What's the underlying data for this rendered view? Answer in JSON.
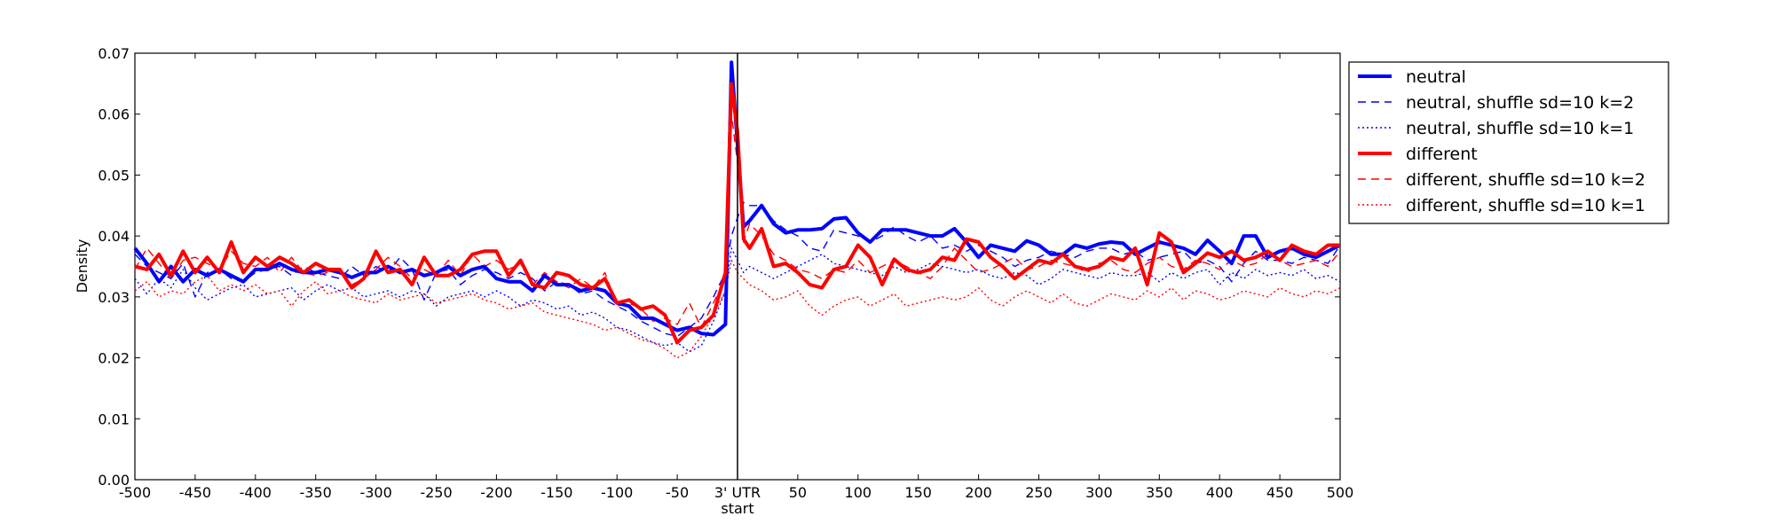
{
  "chart_data": {
    "type": "line",
    "title": "",
    "xlabel": "start",
    "ylabel": "Density",
    "xlim": [
      -500,
      500
    ],
    "ylim": [
      0,
      0.07
    ],
    "grid": false,
    "legend_position": "outside-top-right",
    "xticks": [
      {
        "value": -500,
        "label": "-500"
      },
      {
        "value": -450,
        "label": "-450"
      },
      {
        "value": -400,
        "label": "-400"
      },
      {
        "value": -350,
        "label": "-350"
      },
      {
        "value": -300,
        "label": "-300"
      },
      {
        "value": -250,
        "label": "-250"
      },
      {
        "value": -200,
        "label": "-200"
      },
      {
        "value": -150,
        "label": "-150"
      },
      {
        "value": -100,
        "label": "-100"
      },
      {
        "value": -50,
        "label": "-50"
      },
      {
        "value": 0,
        "label": "3' UTR"
      },
      {
        "value": 50,
        "label": "50"
      },
      {
        "value": 100,
        "label": "100"
      },
      {
        "value": 150,
        "label": "150"
      },
      {
        "value": 200,
        "label": "200"
      },
      {
        "value": 250,
        "label": "250"
      },
      {
        "value": 300,
        "label": "300"
      },
      {
        "value": 350,
        "label": "350"
      },
      {
        "value": 400,
        "label": "400"
      },
      {
        "value": 450,
        "label": "450"
      },
      {
        "value": 500,
        "label": "500"
      }
    ],
    "yticks": [
      {
        "value": 0,
        "label": "0.00"
      },
      {
        "value": 0.01,
        "label": "0.01"
      },
      {
        "value": 0.02,
        "label": "0.02"
      },
      {
        "value": 0.03,
        "label": "0.03"
      },
      {
        "value": 0.04,
        "label": "0.04"
      },
      {
        "value": 0.05,
        "label": "0.05"
      },
      {
        "value": 0.06,
        "label": "0.06"
      },
      {
        "value": 0.07,
        "label": "0.07"
      }
    ],
    "vline_x": 0,
    "x": [
      -500,
      -490,
      -480,
      -470,
      -460,
      -450,
      -440,
      -430,
      -420,
      -410,
      -400,
      -390,
      -380,
      -370,
      -360,
      -350,
      -340,
      -330,
      -320,
      -310,
      -300,
      -290,
      -280,
      -270,
      -260,
      -250,
      -240,
      -230,
      -220,
      -210,
      -200,
      -190,
      -180,
      -170,
      -160,
      -150,
      -140,
      -130,
      -120,
      -110,
      -100,
      -90,
      -80,
      -70,
      -60,
      -50,
      -40,
      -30,
      -20,
      -10,
      -5,
      0,
      5,
      10,
      20,
      30,
      40,
      50,
      60,
      70,
      80,
      90,
      100,
      110,
      120,
      130,
      140,
      150,
      160,
      170,
      180,
      190,
      200,
      210,
      220,
      230,
      240,
      250,
      260,
      270,
      280,
      290,
      300,
      310,
      320,
      330,
      340,
      350,
      360,
      370,
      380,
      390,
      400,
      410,
      420,
      430,
      440,
      450,
      460,
      470,
      480,
      490,
      500
    ],
    "series": [
      {
        "name": "neutral",
        "color": "#0000ff",
        "style": "solid",
        "width": "thick",
        "values": [
          0.038,
          0.0355,
          0.0325,
          0.035,
          0.0325,
          0.0345,
          0.0335,
          0.0345,
          0.0335,
          0.0325,
          0.0345,
          0.0345,
          0.0355,
          0.0345,
          0.034,
          0.034,
          0.0345,
          0.034,
          0.0332,
          0.034,
          0.034,
          0.035,
          0.034,
          0.0345,
          0.0335,
          0.034,
          0.035,
          0.0335,
          0.0345,
          0.035,
          0.033,
          0.0325,
          0.0325,
          0.031,
          0.0335,
          0.032,
          0.032,
          0.031,
          0.0315,
          0.031,
          0.029,
          0.0285,
          0.0265,
          0.0265,
          0.0255,
          0.0245,
          0.025,
          0.024,
          0.0238,
          0.0255,
          0.0685,
          0.055,
          0.0415,
          0.0425,
          0.045,
          0.042,
          0.0405,
          0.041,
          0.041,
          0.0412,
          0.0428,
          0.043,
          0.0405,
          0.039,
          0.041,
          0.041,
          0.041,
          0.0405,
          0.04,
          0.04,
          0.0412,
          0.039,
          0.0365,
          0.0385,
          0.038,
          0.0375,
          0.0392,
          0.0385,
          0.037,
          0.037,
          0.0385,
          0.038,
          0.0387,
          0.039,
          0.0388,
          0.037,
          0.038,
          0.039,
          0.0385,
          0.038,
          0.037,
          0.0393,
          0.0375,
          0.0355,
          0.04,
          0.04,
          0.0365,
          0.0375,
          0.038,
          0.037,
          0.0365,
          0.0375,
          0.0385
        ]
      },
      {
        "name": "neutral, shuffle sd=10 k=2",
        "color": "#0000ff",
        "style": "dashed",
        "width": "thin",
        "values": [
          0.037,
          0.035,
          0.034,
          0.033,
          0.0355,
          0.03,
          0.034,
          0.0345,
          0.033,
          0.0325,
          0.034,
          0.0345,
          0.035,
          0.0335,
          0.035,
          0.034,
          0.0335,
          0.033,
          0.035,
          0.0335,
          0.035,
          0.034,
          0.0365,
          0.0345,
          0.0295,
          0.034,
          0.0345,
          0.032,
          0.0335,
          0.0345,
          0.034,
          0.033,
          0.034,
          0.033,
          0.031,
          0.0325,
          0.032,
          0.0305,
          0.031,
          0.0295,
          0.0285,
          0.0275,
          0.026,
          0.025,
          0.024,
          0.0235,
          0.025,
          0.0265,
          0.03,
          0.034,
          0.04,
          0.043,
          0.0455,
          0.045,
          0.045,
          0.0425,
          0.041,
          0.04,
          0.038,
          0.0375,
          0.041,
          0.0405,
          0.04,
          0.039,
          0.04,
          0.0415,
          0.04,
          0.039,
          0.04,
          0.038,
          0.0385,
          0.0375,
          0.0385,
          0.0375,
          0.0365,
          0.035,
          0.036,
          0.0365,
          0.0375,
          0.037,
          0.0365,
          0.0375,
          0.038,
          0.038,
          0.037,
          0.0375,
          0.036,
          0.0365,
          0.037,
          0.0375,
          0.0355,
          0.036,
          0.035,
          0.0325,
          0.0355,
          0.0375,
          0.036,
          0.036,
          0.0355,
          0.0365,
          0.036,
          0.0355,
          0.0385
        ]
      },
      {
        "name": "neutral, shuffle sd=10 k=1",
        "color": "#0000ff",
        "style": "dotted",
        "width": "thin",
        "values": [
          0.033,
          0.0305,
          0.033,
          0.0315,
          0.0345,
          0.0315,
          0.0295,
          0.0305,
          0.0315,
          0.032,
          0.03,
          0.0305,
          0.031,
          0.0315,
          0.0295,
          0.031,
          0.032,
          0.031,
          0.0315,
          0.03,
          0.0305,
          0.031,
          0.03,
          0.031,
          0.0305,
          0.0285,
          0.03,
          0.0305,
          0.031,
          0.03,
          0.031,
          0.03,
          0.0285,
          0.0295,
          0.029,
          0.028,
          0.0285,
          0.027,
          0.0275,
          0.0265,
          0.025,
          0.0245,
          0.0235,
          0.0225,
          0.022,
          0.0225,
          0.021,
          0.022,
          0.026,
          0.031,
          0.038,
          0.036,
          0.034,
          0.035,
          0.034,
          0.033,
          0.034,
          0.035,
          0.036,
          0.037,
          0.0355,
          0.035,
          0.0345,
          0.034,
          0.0335,
          0.035,
          0.034,
          0.0345,
          0.0355,
          0.035,
          0.0345,
          0.034,
          0.0345,
          0.0335,
          0.033,
          0.034,
          0.0335,
          0.032,
          0.033,
          0.0345,
          0.034,
          0.0335,
          0.033,
          0.034,
          0.0335,
          0.0335,
          0.034,
          0.0325,
          0.034,
          0.033,
          0.034,
          0.0345,
          0.032,
          0.034,
          0.033,
          0.0345,
          0.0335,
          0.034,
          0.0335,
          0.0345,
          0.033,
          0.0335,
          0.0325
        ]
      },
      {
        "name": "different",
        "color": "#ff0000",
        "style": "solid",
        "width": "thick",
        "values": [
          0.035,
          0.0345,
          0.037,
          0.0335,
          0.0375,
          0.034,
          0.0365,
          0.034,
          0.039,
          0.034,
          0.0365,
          0.035,
          0.0365,
          0.0355,
          0.034,
          0.0355,
          0.0345,
          0.0345,
          0.0315,
          0.033,
          0.0375,
          0.034,
          0.0345,
          0.032,
          0.0365,
          0.0335,
          0.0335,
          0.0345,
          0.037,
          0.0375,
          0.0375,
          0.0335,
          0.036,
          0.032,
          0.0315,
          0.034,
          0.0335,
          0.032,
          0.0315,
          0.033,
          0.029,
          0.0295,
          0.028,
          0.0285,
          0.027,
          0.0225,
          0.0245,
          0.025,
          0.027,
          0.034,
          0.065,
          0.057,
          0.0395,
          0.038,
          0.0412,
          0.035,
          0.0355,
          0.034,
          0.032,
          0.0315,
          0.0345,
          0.035,
          0.0385,
          0.0365,
          0.032,
          0.0362,
          0.0345,
          0.034,
          0.0345,
          0.0365,
          0.036,
          0.0395,
          0.039,
          0.0365,
          0.035,
          0.033,
          0.0345,
          0.036,
          0.0355,
          0.037,
          0.035,
          0.0345,
          0.035,
          0.0365,
          0.036,
          0.038,
          0.032,
          0.0405,
          0.039,
          0.034,
          0.0355,
          0.0372,
          0.0365,
          0.0375,
          0.036,
          0.0365,
          0.0375,
          0.036,
          0.0385,
          0.0375,
          0.037,
          0.0385,
          0.0385
        ]
      },
      {
        "name": "different, shuffle sd=10 k=2",
        "color": "#ff0000",
        "style": "dashed",
        "width": "thin",
        "values": [
          0.0345,
          0.038,
          0.0355,
          0.033,
          0.036,
          0.0365,
          0.0355,
          0.0345,
          0.0375,
          0.0355,
          0.035,
          0.0365,
          0.034,
          0.0365,
          0.034,
          0.0335,
          0.034,
          0.0345,
          0.032,
          0.033,
          0.0345,
          0.0365,
          0.035,
          0.033,
          0.0345,
          0.0335,
          0.036,
          0.0335,
          0.037,
          0.035,
          0.036,
          0.0345,
          0.0355,
          0.032,
          0.034,
          0.0325,
          0.0315,
          0.033,
          0.0315,
          0.034,
          0.0285,
          0.029,
          0.028,
          0.026,
          0.0265,
          0.0255,
          0.029,
          0.025,
          0.029,
          0.033,
          0.06,
          0.052,
          0.039,
          0.042,
          0.04,
          0.037,
          0.036,
          0.0345,
          0.034,
          0.033,
          0.0345,
          0.034,
          0.036,
          0.034,
          0.035,
          0.036,
          0.035,
          0.034,
          0.033,
          0.035,
          0.038,
          0.036,
          0.034,
          0.0345,
          0.0355,
          0.0365,
          0.0345,
          0.035,
          0.036,
          0.0355,
          0.035,
          0.034,
          0.0355,
          0.036,
          0.0345,
          0.034,
          0.0355,
          0.0365,
          0.035,
          0.0345,
          0.036,
          0.0355,
          0.0345,
          0.036,
          0.035,
          0.0355,
          0.037,
          0.036,
          0.035,
          0.0355,
          0.036,
          0.035,
          0.0375
        ]
      },
      {
        "name": "different, shuffle sd=10 k=1",
        "color": "#ff0000",
        "style": "dotted",
        "width": "thin",
        "values": [
          0.031,
          0.0325,
          0.03,
          0.031,
          0.0305,
          0.0325,
          0.0335,
          0.031,
          0.032,
          0.031,
          0.032,
          0.0305,
          0.031,
          0.0285,
          0.031,
          0.0325,
          0.0305,
          0.031,
          0.03,
          0.0295,
          0.029,
          0.0305,
          0.0295,
          0.03,
          0.0305,
          0.029,
          0.0295,
          0.03,
          0.0305,
          0.0295,
          0.029,
          0.028,
          0.0285,
          0.029,
          0.0275,
          0.027,
          0.0265,
          0.026,
          0.0255,
          0.0245,
          0.025,
          0.024,
          0.023,
          0.0225,
          0.0215,
          0.02,
          0.021,
          0.0235,
          0.027,
          0.031,
          0.036,
          0.034,
          0.033,
          0.032,
          0.031,
          0.0295,
          0.03,
          0.031,
          0.0285,
          0.027,
          0.0285,
          0.0295,
          0.03,
          0.0285,
          0.0295,
          0.0305,
          0.0285,
          0.029,
          0.0295,
          0.03,
          0.0295,
          0.03,
          0.0315,
          0.0295,
          0.0285,
          0.03,
          0.031,
          0.03,
          0.029,
          0.0305,
          0.029,
          0.0285,
          0.0295,
          0.0305,
          0.03,
          0.0295,
          0.031,
          0.03,
          0.0315,
          0.0295,
          0.031,
          0.0305,
          0.0295,
          0.03,
          0.031,
          0.0305,
          0.03,
          0.0315,
          0.0305,
          0.03,
          0.031,
          0.0305,
          0.0315
        ]
      }
    ]
  }
}
